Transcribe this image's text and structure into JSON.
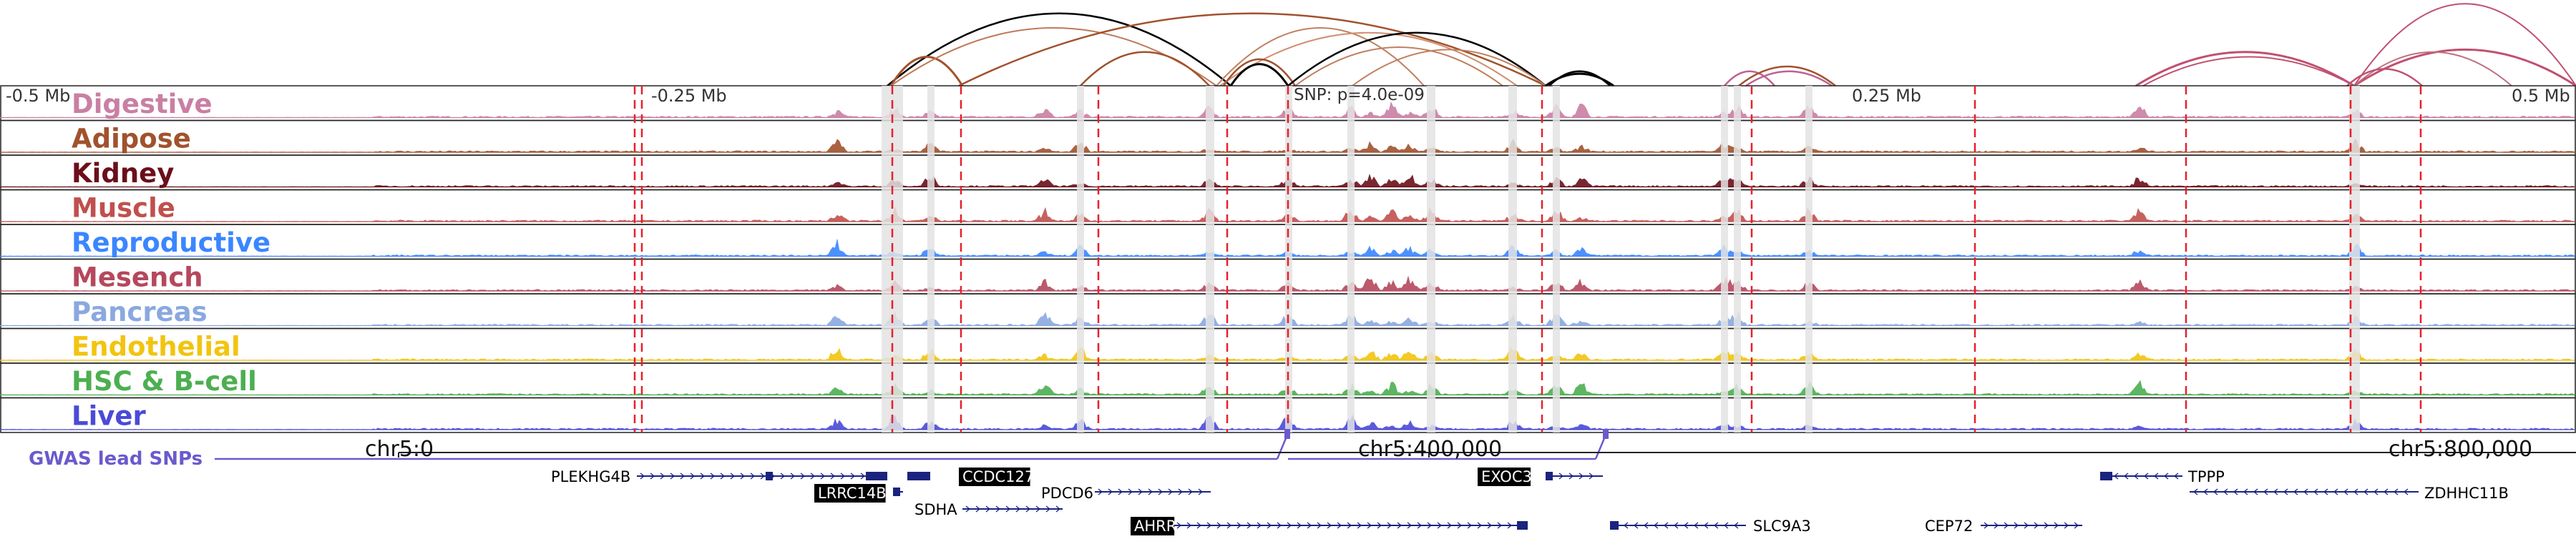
{
  "scale": {
    "left_label": "-0.5 Mb",
    "mid_left_label": "-0.25 Mb",
    "mid_right_label": "0.25 Mb",
    "right_label": "0.5 Mb",
    "snp_label": "SNP: p=4.0e-09"
  },
  "tracks": [
    {
      "name": "Digestive",
      "color": "#c97fa3"
    },
    {
      "name": "Adipose",
      "color": "#a0522d"
    },
    {
      "name": "Kidney",
      "color": "#6b0f1a"
    },
    {
      "name": "Muscle",
      "color": "#c0504d"
    },
    {
      "name": "Reproductive",
      "color": "#3a86ff"
    },
    {
      "name": "Mesench",
      "color": "#b5485d"
    },
    {
      "name": "Pancreas",
      "color": "#8aa8e0"
    },
    {
      "name": "Endothelial",
      "color": "#f2c40f"
    },
    {
      "name": "HSC & B-cell",
      "color": "#4caf50"
    },
    {
      "name": "Liver",
      "color": "#4a4ad8"
    }
  ],
  "gwas": {
    "label": "GWAS lead SNPs",
    "color": "#6a5acd"
  },
  "coords": {
    "left": "chr5:0",
    "middle": "chr5:400,000",
    "right": "chr5:800,000"
  },
  "genes": [
    {
      "name": "PLEKHG4B",
      "highlight": false
    },
    {
      "name": "CCDC127",
      "highlight": true
    },
    {
      "name": "LRRC14B",
      "highlight": true
    },
    {
      "name": "PDCD6",
      "highlight": false
    },
    {
      "name": "SDHA",
      "highlight": false
    },
    {
      "name": "AHRR",
      "highlight": true
    },
    {
      "name": "EXOC3",
      "highlight": true
    },
    {
      "name": "SLC9A3",
      "highlight": false
    },
    {
      "name": "CEP72",
      "highlight": false
    },
    {
      "name": "TPPP",
      "highlight": false
    },
    {
      "name": "ZDHHC11B",
      "highlight": false
    }
  ]
}
